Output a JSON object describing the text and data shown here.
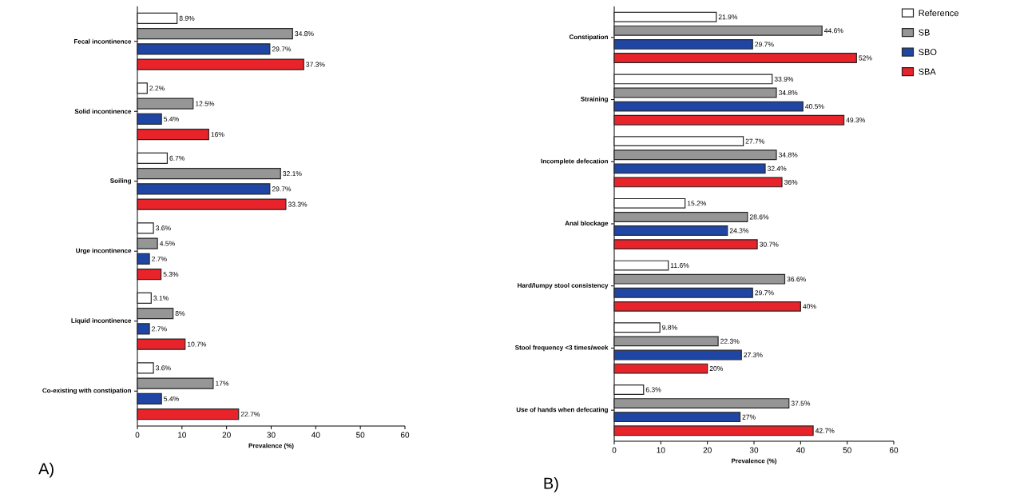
{
  "chart_data": [
    {
      "type": "bar",
      "orientation": "horizontal",
      "xlabel": "Prevalence (%)",
      "xlim": [
        0,
        60
      ],
      "xticks": [
        0,
        10,
        20,
        30,
        40,
        50,
        60
      ],
      "annotations": [
        "A)"
      ],
      "categories": [
        "Fecal incontinence",
        "Solid incontinence",
        "Soiling",
        "Urge incontinence",
        "Liquid incontinence",
        "Co-existing with constipation"
      ],
      "series": [
        {
          "color": "#ffffff",
          "values": [
            8.9,
            2.2,
            6.7,
            3.6,
            3.1,
            3.6
          ],
          "value_labels": [
            "8.9%",
            "2.2%",
            "6.7%",
            "3.6%",
            "3.1%",
            "3.6%"
          ]
        },
        {
          "color": "#969696",
          "values": [
            34.8,
            12.5,
            32.1,
            4.5,
            8,
            17
          ],
          "value_labels": [
            "34.8%",
            "12.5%",
            "32.1%",
            "4.5%",
            "8%",
            "17%"
          ]
        },
        {
          "color": "#2046a5",
          "values": [
            29.7,
            5.4,
            29.7,
            2.7,
            2.7,
            5.4
          ],
          "value_labels": [
            "29.7%",
            "5.4%",
            "29.7%",
            "2.7%",
            "2.7%",
            "5.4%"
          ]
        },
        {
          "color": "#e8232a",
          "values": [
            37.3,
            16,
            33.3,
            5.3,
            10.7,
            22.7
          ],
          "value_labels": [
            "37.3%",
            "16%",
            "33.3%",
            "5.3%",
            "10.7%",
            "22.7%"
          ]
        }
      ]
    },
    {
      "type": "bar",
      "orientation": "horizontal",
      "xlabel": "Prevalence (%)",
      "xlim": [
        0,
        60
      ],
      "xticks": [
        0,
        10,
        20,
        30,
        40,
        50,
        60
      ],
      "annotations": [
        "B)"
      ],
      "legend": "top right",
      "categories": [
        "Constipation",
        "Straining",
        "Incomplete defecation",
        "Anal blockage",
        "Hard/lumpy stool consistency",
        "Stool frequency <3 times/week",
        "Use of hands when defecating"
      ],
      "series": [
        {
          "name": "Reference",
          "color": "#ffffff",
          "values": [
            21.9,
            33.9,
            27.7,
            15.2,
            11.6,
            9.8,
            6.3
          ],
          "value_labels": [
            "21.9%",
            "33.9%",
            "27.7%",
            "15.2%",
            "11.6%",
            "9.8%",
            "6.3%"
          ]
        },
        {
          "name": "SB",
          "color": "#969696",
          "values": [
            44.6,
            34.8,
            34.8,
            28.6,
            36.6,
            22.3,
            37.5
          ],
          "value_labels": [
            "44.6%",
            "34.8%",
            "34.8%",
            "28.6%",
            "36.6%",
            "22.3%",
            "37.5%"
          ]
        },
        {
          "name": "SBO",
          "color": "#2046a5",
          "values": [
            29.7,
            40.5,
            32.4,
            24.3,
            29.7,
            27.3,
            27
          ],
          "value_labels": [
            "29.7%",
            "40.5%",
            "32.4%",
            "24.3%",
            "29.7%",
            "27.3%",
            "27%"
          ]
        },
        {
          "name": "SBA",
          "color": "#e8232a",
          "values": [
            52,
            49.3,
            36,
            30.7,
            40,
            20,
            42.7
          ],
          "value_labels": [
            "52%",
            "49.3%",
            "36%",
            "30.7%",
            "40%",
            "20%",
            "42.7%"
          ]
        }
      ]
    }
  ]
}
